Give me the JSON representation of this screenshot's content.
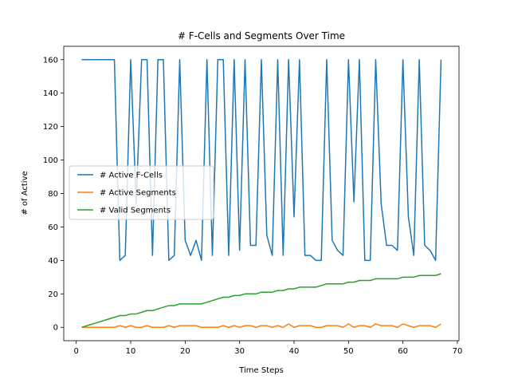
{
  "chart_data": {
    "type": "line",
    "title": "# F-Cells and Segments Over Time",
    "xlabel": "Time Steps",
    "ylabel": "# of Active",
    "xlim": [
      -2.3,
      70.3
    ],
    "ylim": [
      -8,
      168
    ],
    "xticks": [
      0,
      10,
      20,
      30,
      40,
      50,
      60,
      70
    ],
    "yticks": [
      0,
      20,
      40,
      60,
      80,
      100,
      120,
      140,
      160
    ],
    "grid": false,
    "legend_position": "center-left",
    "x": [
      1,
      2,
      3,
      4,
      5,
      6,
      7,
      8,
      9,
      10,
      11,
      12,
      13,
      14,
      15,
      16,
      17,
      18,
      19,
      20,
      21,
      22,
      23,
      24,
      25,
      26,
      27,
      28,
      29,
      30,
      31,
      32,
      33,
      34,
      35,
      36,
      37,
      38,
      39,
      40,
      41,
      42,
      43,
      44,
      45,
      46,
      47,
      48,
      49,
      50,
      51,
      52,
      53,
      54,
      55,
      56,
      57,
      58,
      59,
      60,
      61,
      62,
      63,
      64,
      65,
      66,
      67
    ],
    "series": [
      {
        "name": "# Active F-Cells",
        "color": "#1f77b4",
        "values": [
          160,
          160,
          160,
          160,
          160,
          160,
          160,
          40,
          43,
          160,
          74,
          160,
          160,
          43,
          160,
          160,
          40,
          43,
          160,
          52,
          43,
          52,
          40,
          160,
          43,
          160,
          160,
          43,
          160,
          46,
          160,
          49,
          49,
          160,
          55,
          43,
          160,
          43,
          160,
          66,
          160,
          43,
          43,
          40,
          40,
          160,
          52,
          46,
          43,
          160,
          75,
          160,
          40,
          40,
          160,
          74,
          49,
          49,
          46,
          160,
          66,
          43,
          160,
          49,
          46,
          40,
          160
        ]
      },
      {
        "name": "# Active Segments",
        "color": "#ff7f0e",
        "values": [
          0,
          0,
          0,
          0,
          0,
          0,
          0,
          1,
          0,
          1,
          0,
          0,
          1,
          0,
          0,
          0,
          1,
          0,
          1,
          1,
          1,
          1,
          0,
          0,
          0,
          0,
          1,
          0,
          1,
          0,
          1,
          1,
          0,
          1,
          1,
          0,
          1,
          0,
          2,
          0,
          1,
          1,
          1,
          0,
          0,
          1,
          1,
          1,
          0,
          2,
          0,
          1,
          1,
          0,
          2,
          1,
          1,
          1,
          0,
          2,
          1,
          0,
          1,
          1,
          1,
          0,
          2
        ]
      },
      {
        "name": "# Valid Segments",
        "color": "#2ca02c",
        "values": [
          0,
          1,
          2,
          3,
          4,
          5,
          6,
          7,
          7,
          8,
          8,
          9,
          10,
          10,
          11,
          12,
          13,
          13,
          14,
          14,
          14,
          14,
          14,
          15,
          16,
          17,
          18,
          18,
          19,
          19,
          20,
          20,
          20,
          21,
          21,
          21,
          22,
          22,
          23,
          23,
          24,
          24,
          24,
          24,
          25,
          26,
          26,
          26,
          26,
          27,
          27,
          28,
          28,
          28,
          29,
          29,
          29,
          29,
          29,
          30,
          30,
          30,
          31,
          31,
          31,
          31,
          32
        ]
      }
    ]
  }
}
